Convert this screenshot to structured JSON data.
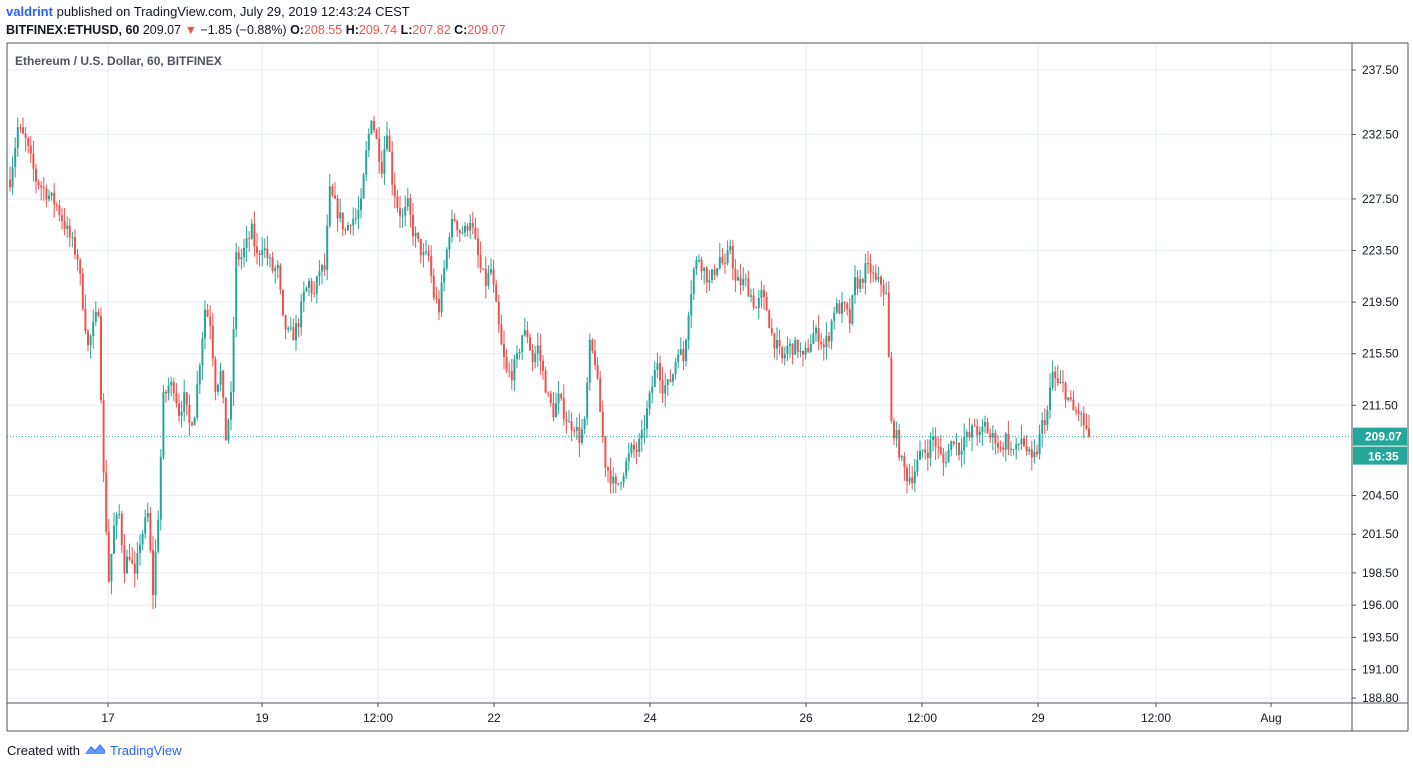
{
  "header": {
    "author": "valdrint",
    "published_text": "published on TradingView.com, July 29, 2019 12:43:24 CEST",
    "symbol": "BITFINEX:ETHUSD, 60",
    "last": "209.07",
    "change_arrow": "▼",
    "change": "−1.85 (−0.88%)",
    "open_label": "O:",
    "open": "208.55",
    "high_label": "H:",
    "high": "209.74",
    "low_label": "L:",
    "low": "207.82",
    "close_label": "C:",
    "close": "209.07"
  },
  "footer": {
    "created_with": "Created with",
    "brand": "TradingView"
  },
  "colors": {
    "up": "#26a69a",
    "down": "#ef5350",
    "grid": "#e8eef3",
    "axis": "#50535e",
    "price_line": "#26a69a",
    "brand": "#2962ff"
  },
  "chart_data": {
    "type": "candlestick",
    "title": "Ethereum / U.S. Dollar, 60, BITFINEX",
    "y_ticks": [
      "237.50",
      "232.50",
      "227.50",
      "223.50",
      "219.50",
      "215.50",
      "211.50",
      "209.07",
      "204.50",
      "201.50",
      "198.50",
      "196.00",
      "193.50",
      "191.00",
      "188.80"
    ],
    "x_ticks": [
      "17",
      "19",
      "12:00",
      "22",
      "24",
      "26",
      "12:00",
      "29",
      "12:00",
      "Aug"
    ],
    "current_price": "209.07",
    "countdown": "16:35",
    "ylim": [
      188.8,
      237.5
    ],
    "grid": true,
    "waypoints": [
      [
        0,
        229
      ],
      [
        3,
        233
      ],
      [
        6,
        232
      ],
      [
        10,
        229
      ],
      [
        14,
        228
      ],
      [
        18,
        227
      ],
      [
        22,
        225
      ],
      [
        26,
        223
      ],
      [
        30,
        216
      ],
      [
        34,
        219
      ],
      [
        36,
        206
      ],
      [
        38,
        198
      ],
      [
        40,
        202
      ],
      [
        42,
        203
      ],
      [
        44,
        199
      ],
      [
        46,
        200
      ],
      [
        48,
        198
      ],
      [
        50,
        201
      ],
      [
        53,
        203
      ],
      [
        55,
        197
      ],
      [
        57,
        203
      ],
      [
        59,
        212
      ],
      [
        61,
        213
      ],
      [
        63,
        213
      ],
      [
        65,
        211
      ],
      [
        67,
        212
      ],
      [
        69,
        210
      ],
      [
        71,
        211
      ],
      [
        73,
        215
      ],
      [
        75,
        219
      ],
      [
        77,
        218
      ],
      [
        79,
        213
      ],
      [
        81,
        214
      ],
      [
        83,
        209
      ],
      [
        85,
        212
      ],
      [
        87,
        223
      ],
      [
        89,
        223
      ],
      [
        91,
        224
      ],
      [
        93,
        225
      ],
      [
        95,
        223
      ],
      [
        97,
        224
      ],
      [
        99,
        223
      ],
      [
        101,
        222
      ],
      [
        103,
        222
      ],
      [
        105,
        218
      ],
      [
        107,
        217
      ],
      [
        109,
        217
      ],
      [
        111,
        218
      ],
      [
        113,
        220
      ],
      [
        115,
        221
      ],
      [
        117,
        220
      ],
      [
        119,
        222
      ],
      [
        121,
        222
      ],
      [
        123,
        228
      ],
      [
        125,
        227
      ],
      [
        127,
        226
      ],
      [
        129,
        225
      ],
      [
        131,
        226
      ],
      [
        133,
        226
      ],
      [
        135,
        227
      ],
      [
        137,
        231
      ],
      [
        139,
        234
      ],
      [
        141,
        232
      ],
      [
        143,
        230
      ],
      [
        145,
        233
      ],
      [
        147,
        229
      ],
      [
        149,
        227
      ],
      [
        151,
        226
      ],
      [
        153,
        227
      ],
      [
        155,
        225
      ],
      [
        157,
        224
      ],
      [
        159,
        223
      ],
      [
        161,
        223
      ],
      [
        163,
        220
      ],
      [
        165,
        219
      ],
      [
        167,
        222
      ],
      [
        169,
        225
      ],
      [
        171,
        226
      ],
      [
        173,
        225
      ],
      [
        175,
        225
      ],
      [
        177,
        226
      ],
      [
        179,
        224
      ],
      [
        181,
        222
      ],
      [
        183,
        221
      ],
      [
        185,
        222
      ],
      [
        187,
        219
      ],
      [
        189,
        216
      ],
      [
        191,
        214
      ],
      [
        193,
        214
      ],
      [
        195,
        215
      ],
      [
        197,
        217
      ],
      [
        199,
        217
      ],
      [
        201,
        215
      ],
      [
        203,
        216
      ],
      [
        205,
        214
      ],
      [
        207,
        212
      ],
      [
        209,
        211
      ],
      [
        211,
        212
      ],
      [
        213,
        211
      ],
      [
        215,
        210
      ],
      [
        217,
        210
      ],
      [
        219,
        209
      ],
      [
        221,
        210
      ],
      [
        223,
        216
      ],
      [
        225,
        215
      ],
      [
        227,
        211
      ],
      [
        229,
        207
      ],
      [
        231,
        206
      ],
      [
        233,
        205
      ],
      [
        235,
        206
      ],
      [
        237,
        207
      ],
      [
        239,
        208
      ],
      [
        241,
        208
      ],
      [
        243,
        209
      ],
      [
        245,
        211
      ],
      [
        247,
        213
      ],
      [
        249,
        215
      ],
      [
        251,
        213
      ],
      [
        253,
        213
      ],
      [
        255,
        214
      ],
      [
        257,
        216
      ],
      [
        259,
        215
      ],
      [
        261,
        219
      ],
      [
        263,
        222
      ],
      [
        265,
        223
      ],
      [
        267,
        222
      ],
      [
        269,
        221
      ],
      [
        271,
        222
      ],
      [
        273,
        223
      ],
      [
        275,
        222
      ],
      [
        277,
        224
      ],
      [
        279,
        221
      ],
      [
        281,
        221
      ],
      [
        283,
        221
      ],
      [
        285,
        220
      ],
      [
        287,
        219
      ],
      [
        289,
        220
      ],
      [
        291,
        219
      ],
      [
        293,
        217
      ],
      [
        295,
        216
      ],
      [
        297,
        215
      ],
      [
        299,
        216
      ],
      [
        301,
        216
      ],
      [
        303,
        216
      ],
      [
        305,
        215
      ],
      [
        307,
        216
      ],
      [
        309,
        217
      ],
      [
        311,
        217
      ],
      [
        313,
        216
      ],
      [
        315,
        217
      ],
      [
        317,
        219
      ],
      [
        319,
        219
      ],
      [
        321,
        219
      ],
      [
        323,
        218
      ],
      [
        325,
        221
      ],
      [
        327,
        221
      ],
      [
        329,
        222
      ],
      [
        331,
        222
      ],
      [
        333,
        221
      ],
      [
        335,
        221
      ],
      [
        337,
        220
      ],
      [
        339,
        210
      ],
      [
        341,
        209
      ],
      [
        343,
        207
      ],
      [
        345,
        206
      ],
      [
        347,
        206
      ],
      [
        349,
        207
      ],
      [
        351,
        208
      ],
      [
        353,
        208
      ],
      [
        355,
        209
      ],
      [
        357,
        208
      ],
      [
        359,
        207
      ],
      [
        361,
        208
      ],
      [
        363,
        209
      ],
      [
        365,
        208
      ],
      [
        367,
        209
      ],
      [
        369,
        209
      ],
      [
        371,
        210
      ],
      [
        373,
        209
      ],
      [
        375,
        210
      ],
      [
        377,
        209
      ],
      [
        379,
        209
      ],
      [
        381,
        208
      ],
      [
        383,
        209
      ],
      [
        385,
        208
      ],
      [
        387,
        208
      ],
      [
        389,
        209
      ],
      [
        391,
        208
      ],
      [
        393,
        207
      ],
      [
        395,
        208
      ],
      [
        397,
        210
      ],
      [
        399,
        211
      ],
      [
        401,
        214
      ],
      [
        403,
        213
      ],
      [
        405,
        213
      ],
      [
        407,
        212
      ],
      [
        409,
        211
      ],
      [
        411,
        211
      ],
      [
        413,
        210
      ],
      [
        415,
        209.07
      ]
    ]
  }
}
